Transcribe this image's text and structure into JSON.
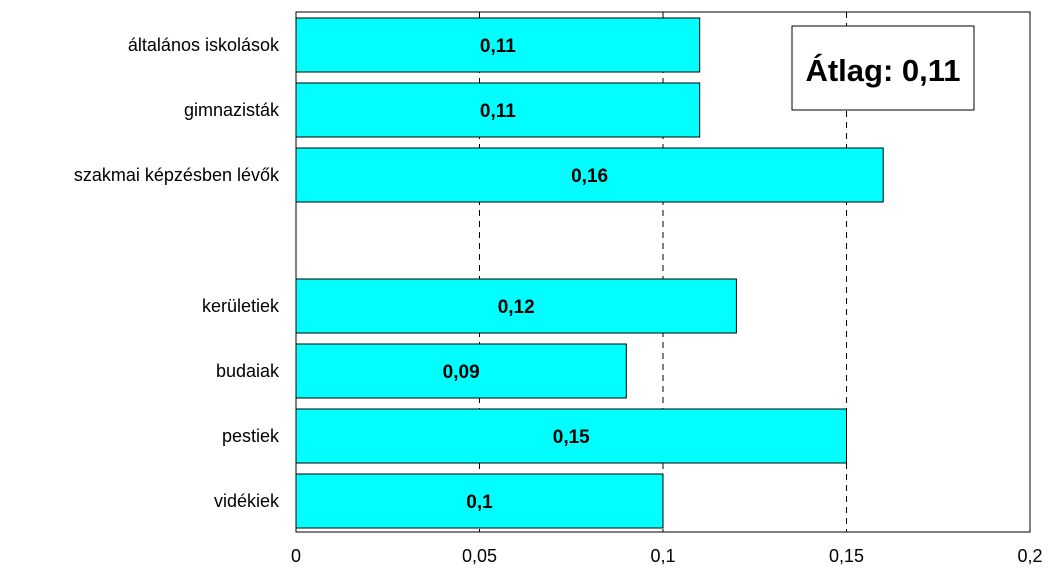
{
  "chart_data": {
    "type": "bar",
    "orientation": "horizontal",
    "categories": [
      "általános iskolások",
      "gimnazisták",
      "szakmai képzésben lévők",
      "",
      "kerületiek",
      "budaiak",
      "pestiek",
      "vidékiek"
    ],
    "values": [
      0.11,
      0.11,
      0.16,
      null,
      0.12,
      0.09,
      0.15,
      0.1
    ],
    "data_labels": [
      "0,11",
      "0,11",
      "0,16",
      "",
      "0,12",
      "0,09",
      "0,15",
      "0,1"
    ],
    "xlim": [
      0,
      0.2
    ],
    "xticks": [
      0,
      0.05,
      0.1,
      0.15,
      0.2
    ],
    "xtick_labels": [
      "0",
      "0,05",
      "0,1",
      "0,15",
      "0,2"
    ],
    "grid": "vertical dashed",
    "annotation": "Átlag: 0,11",
    "colors": {
      "bar": "#00ffff",
      "stroke": "#000000"
    }
  }
}
